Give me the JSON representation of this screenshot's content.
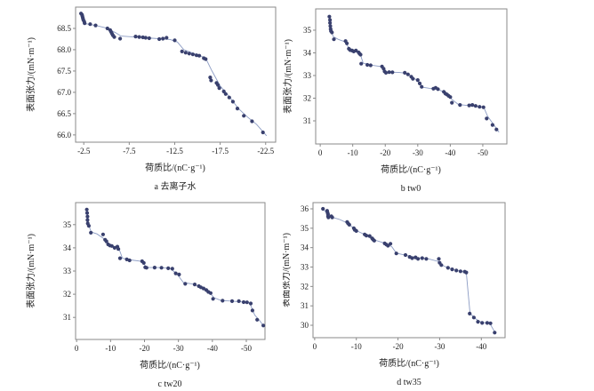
{
  "figure": {
    "point_color": "#39406e",
    "line_color": "#8c9cc4",
    "axis_color": "#8a8a8a",
    "text_color": "#1c1c1c",
    "background": "#ffffff"
  },
  "chart_data": [
    {
      "type": "scatter",
      "caption": "a 去离子水",
      "xlabel": "荷质比/(nC·g⁻¹)",
      "ylabel": "表面张力/(mN·m⁻¹)",
      "x_ticks": {
        "values": [
          -2.5,
          -7.5,
          -12.5,
          -17.5,
          -22.5
        ],
        "labels": [
          "-2.5",
          "-7.5",
          "-12.5",
          "-17.5",
          "-22.5"
        ]
      },
      "y_ticks": {
        "values": [
          66.0,
          66.5,
          67.0,
          67.5,
          68.0,
          68.5
        ],
        "labels": [
          "66.0",
          "66.5",
          "67.0",
          "67.5",
          "68.0",
          "68.5"
        ]
      },
      "x_range": [
        -1.6,
        -23.6
      ],
      "y_range": [
        65.83,
        69.0
      ],
      "scatter": [
        [
          -2.2,
          68.85
        ],
        [
          -2.3,
          68.82
        ],
        [
          -2.35,
          68.78
        ],
        [
          -2.4,
          68.74
        ],
        [
          -2.45,
          68.7
        ],
        [
          -2.55,
          68.66
        ],
        [
          -2.6,
          68.62
        ],
        [
          -3.2,
          68.6
        ],
        [
          -3.8,
          68.57
        ],
        [
          -5.1,
          68.5
        ],
        [
          -5.4,
          68.46
        ],
        [
          -5.5,
          68.42
        ],
        [
          -5.6,
          68.38
        ],
        [
          -5.7,
          68.34
        ],
        [
          -5.85,
          68.3
        ],
        [
          -6.5,
          68.26
        ],
        [
          -8.2,
          68.31
        ],
        [
          -8.6,
          68.3
        ],
        [
          -9.0,
          68.29
        ],
        [
          -9.3,
          68.28
        ],
        [
          -9.7,
          68.27
        ],
        [
          -10.8,
          68.25
        ],
        [
          -11.2,
          68.26
        ],
        [
          -11.6,
          68.28
        ],
        [
          -12.5,
          68.22
        ],
        [
          -13.3,
          67.96
        ],
        [
          -13.7,
          67.93
        ],
        [
          -14.1,
          67.91
        ],
        [
          -14.5,
          67.89
        ],
        [
          -14.9,
          67.87
        ],
        [
          -15.2,
          67.86
        ],
        [
          -15.7,
          67.8
        ],
        [
          -15.9,
          67.78
        ],
        [
          -16.4,
          67.35
        ],
        [
          -16.5,
          67.28
        ],
        [
          -17.1,
          67.22
        ],
        [
          -17.25,
          67.17
        ],
        [
          -17.4,
          67.1
        ],
        [
          -17.9,
          67.02
        ],
        [
          -18.1,
          66.96
        ],
        [
          -18.5,
          66.88
        ],
        [
          -18.9,
          66.78
        ],
        [
          -19.4,
          66.62
        ],
        [
          -20.1,
          66.45
        ],
        [
          -21.0,
          66.32
        ],
        [
          -22.2,
          66.06
        ]
      ],
      "trend_line": [
        [
          -2.4,
          68.62
        ],
        [
          -3.0,
          68.6
        ],
        [
          -4.0,
          68.56
        ],
        [
          -5.0,
          68.51
        ],
        [
          -6.0,
          68.4
        ],
        [
          -6.6,
          68.32
        ],
        [
          -8.0,
          68.3
        ],
        [
          -10.0,
          68.27
        ],
        [
          -12.0,
          68.24
        ],
        [
          -12.8,
          68.18
        ],
        [
          -13.5,
          68.0
        ],
        [
          -14.5,
          67.92
        ],
        [
          -15.5,
          67.84
        ],
        [
          -16.0,
          67.76
        ],
        [
          -16.6,
          67.5
        ],
        [
          -17.5,
          67.15
        ],
        [
          -18.5,
          66.9
        ],
        [
          -19.5,
          66.62
        ],
        [
          -20.5,
          66.42
        ],
        [
          -21.5,
          66.25
        ],
        [
          -22.6,
          65.98
        ]
      ]
    },
    {
      "type": "scatter",
      "caption": "b tw0",
      "xlabel": "荷质比/(nC·g⁻¹)",
      "ylabel": "表面张力/(mN·m⁻¹)",
      "x_ticks": {
        "values": [
          0,
          -10,
          -20,
          -30,
          -40,
          -50
        ],
        "labels": [
          "0",
          "-10",
          "-20",
          "-30",
          "-40",
          "-50"
        ]
      },
      "y_ticks": {
        "values": [
          31,
          32,
          33,
          34,
          35
        ],
        "labels": [
          "31",
          "32",
          "33",
          "34",
          "35"
        ]
      },
      "x_range": [
        1.4,
        -57.4
      ],
      "y_range": [
        29.98,
        35.94
      ],
      "scatter": [
        [
          -2.8,
          35.6
        ],
        [
          -3.0,
          35.45
        ],
        [
          -3.0,
          35.32
        ],
        [
          -3.1,
          35.18
        ],
        [
          -3.2,
          35.05
        ],
        [
          -3.3,
          34.96
        ],
        [
          -3.6,
          34.9
        ],
        [
          -4.2,
          34.6
        ],
        [
          -7.8,
          34.52
        ],
        [
          -8.2,
          34.42
        ],
        [
          -8.8,
          34.18
        ],
        [
          -9.2,
          34.12
        ],
        [
          -9.8,
          34.1
        ],
        [
          -10.3,
          34.06
        ],
        [
          -11.0,
          34.1
        ],
        [
          -11.8,
          34.02
        ],
        [
          -12.1,
          33.96
        ],
        [
          -12.4,
          33.92
        ],
        [
          -12.6,
          33.52
        ],
        [
          -14.5,
          33.47
        ],
        [
          -15.5,
          33.45
        ],
        [
          -19.0,
          33.4
        ],
        [
          -19.5,
          33.3
        ],
        [
          -19.8,
          33.18
        ],
        [
          -20.2,
          33.12
        ],
        [
          -21.2,
          33.15
        ],
        [
          -22.2,
          33.14
        ],
        [
          -26.0,
          33.12
        ],
        [
          -27.0,
          33.05
        ],
        [
          -28.0,
          32.95
        ],
        [
          -28.5,
          32.86
        ],
        [
          -30.0,
          32.8
        ],
        [
          -30.6,
          32.65
        ],
        [
          -31.2,
          32.5
        ],
        [
          -34.8,
          32.42
        ],
        [
          -35.5,
          32.46
        ],
        [
          -36.2,
          32.4
        ],
        [
          -38.0,
          32.28
        ],
        [
          -38.5,
          32.2
        ],
        [
          -39.0,
          32.16
        ],
        [
          -39.5,
          32.1
        ],
        [
          -40.0,
          32.05
        ],
        [
          -40.5,
          31.8
        ],
        [
          -43.0,
          31.7
        ],
        [
          -45.8,
          31.68
        ],
        [
          -46.8,
          31.7
        ],
        [
          -47.8,
          31.66
        ],
        [
          -49.0,
          31.62
        ],
        [
          -50.2,
          31.6
        ],
        [
          -51.2,
          31.1
        ],
        [
          -53.0,
          30.82
        ],
        [
          -54.2,
          30.62
        ]
      ],
      "trend_line": [
        [
          -2.8,
          35.5
        ],
        [
          -3.3,
          35.0
        ],
        [
          -4.0,
          34.72
        ],
        [
          -5.5,
          34.6
        ],
        [
          -7.8,
          34.48
        ],
        [
          -9.0,
          34.15
        ],
        [
          -11.0,
          34.06
        ],
        [
          -12.3,
          33.95
        ],
        [
          -13.2,
          33.55
        ],
        [
          -15.5,
          33.46
        ],
        [
          -18.5,
          33.4
        ],
        [
          -20.5,
          33.15
        ],
        [
          -24.0,
          33.14
        ],
        [
          -26.5,
          33.1
        ],
        [
          -28.5,
          32.92
        ],
        [
          -30.5,
          32.7
        ],
        [
          -31.5,
          32.48
        ],
        [
          -33.5,
          32.44
        ],
        [
          -36.0,
          32.42
        ],
        [
          -38.5,
          32.22
        ],
        [
          -40.5,
          31.95
        ],
        [
          -42.5,
          31.72
        ],
        [
          -45.0,
          31.68
        ],
        [
          -48.0,
          31.65
        ],
        [
          -50.3,
          31.6
        ],
        [
          -51.5,
          31.2
        ],
        [
          -53.0,
          30.9
        ],
        [
          -55.0,
          30.5
        ]
      ]
    },
    {
      "type": "scatter",
      "caption": "c tw20",
      "xlabel": "荷质比/(nC·g⁻¹)",
      "ylabel": "表面张力/(mN·m⁻¹)",
      "x_ticks": {
        "values": [
          0,
          -10,
          -20,
          -30,
          -40,
          -50
        ],
        "labels": [
          "0",
          "-10",
          "-20",
          "-30",
          "-40",
          "-50"
        ]
      },
      "y_ticks": {
        "values": [
          31,
          32,
          33,
          34,
          35
        ],
        "labels": [
          "31",
          "32",
          "33",
          "34",
          "35"
        ]
      },
      "x_range": [
        0.3,
        -55.5
      ],
      "y_range": [
        30.05,
        35.95
      ],
      "scatter": [
        [
          -3.0,
          35.65
        ],
        [
          -3.1,
          35.5
        ],
        [
          -3.2,
          35.35
        ],
        [
          -3.2,
          35.2
        ],
        [
          -3.3,
          35.05
        ],
        [
          -3.6,
          34.95
        ],
        [
          -4.2,
          34.65
        ],
        [
          -7.8,
          34.58
        ],
        [
          -8.4,
          34.35
        ],
        [
          -8.8,
          34.28
        ],
        [
          -9.3,
          34.15
        ],
        [
          -9.8,
          34.1
        ],
        [
          -10.4,
          34.08
        ],
        [
          -11.2,
          34.0
        ],
        [
          -12.0,
          34.05
        ],
        [
          -12.3,
          33.95
        ],
        [
          -12.8,
          33.55
        ],
        [
          -14.8,
          33.5
        ],
        [
          -15.6,
          33.46
        ],
        [
          -19.3,
          33.42
        ],
        [
          -19.8,
          33.35
        ],
        [
          -20.2,
          33.16
        ],
        [
          -20.6,
          33.14
        ],
        [
          -23.0,
          33.15
        ],
        [
          -25.0,
          33.14
        ],
        [
          -27.0,
          33.12
        ],
        [
          -28.2,
          33.1
        ],
        [
          -29.2,
          32.9
        ],
        [
          -30.2,
          32.85
        ],
        [
          -32.0,
          32.45
        ],
        [
          -34.8,
          32.42
        ],
        [
          -36.0,
          32.35
        ],
        [
          -36.6,
          32.3
        ],
        [
          -37.4,
          32.25
        ],
        [
          -38.2,
          32.18
        ],
        [
          -38.8,
          32.1
        ],
        [
          -39.5,
          32.05
        ],
        [
          -40.2,
          31.8
        ],
        [
          -43.0,
          31.72
        ],
        [
          -45.8,
          31.7
        ],
        [
          -47.8,
          31.7
        ],
        [
          -49.2,
          31.66
        ],
        [
          -50.2,
          31.65
        ],
        [
          -51.3,
          31.6
        ],
        [
          -51.8,
          31.3
        ],
        [
          -53.2,
          30.9
        ],
        [
          -55.0,
          30.65
        ]
      ],
      "trend_line": [
        [
          -3.0,
          35.55
        ],
        [
          -3.5,
          35.0
        ],
        [
          -4.3,
          34.68
        ],
        [
          -6.0,
          34.6
        ],
        [
          -8.0,
          34.4
        ],
        [
          -9.5,
          34.12
        ],
        [
          -11.5,
          34.02
        ],
        [
          -12.5,
          33.95
        ],
        [
          -13.5,
          33.55
        ],
        [
          -16.0,
          33.48
        ],
        [
          -19.0,
          33.42
        ],
        [
          -20.8,
          33.15
        ],
        [
          -24.0,
          33.15
        ],
        [
          -27.5,
          33.12
        ],
        [
          -29.5,
          32.88
        ],
        [
          -31.5,
          32.5
        ],
        [
          -34.0,
          32.45
        ],
        [
          -36.5,
          32.32
        ],
        [
          -39.0,
          32.1
        ],
        [
          -40.5,
          31.85
        ],
        [
          -42.5,
          31.73
        ],
        [
          -46.0,
          31.7
        ],
        [
          -49.5,
          31.66
        ],
        [
          -51.0,
          31.62
        ],
        [
          -52.5,
          31.1
        ],
        [
          -54.0,
          30.85
        ],
        [
          -55.2,
          30.6
        ]
      ]
    },
    {
      "type": "scatter",
      "caption": "d tw35",
      "xlabel": "荷质比/(nC·g⁻¹)",
      "ylabel": "表面张力/(mN·m⁻¹)",
      "x_ticks": {
        "values": [
          0,
          -10,
          -20,
          -30,
          -40
        ],
        "labels": [
          "0",
          "-10",
          "-20",
          "-30",
          "-40"
        ]
      },
      "y_ticks": {
        "values": [
          30,
          31,
          32,
          33,
          34,
          35,
          36
        ],
        "labels": [
          "30",
          "31",
          "32",
          "33",
          "34",
          "35",
          "36"
        ]
      },
      "x_range": [
        0.4,
        -45.7
      ],
      "y_range": [
        29.36,
        36.32
      ],
      "scatter": [
        [
          -2.0,
          36.0
        ],
        [
          -3.0,
          35.9
        ],
        [
          -3.1,
          35.8
        ],
        [
          -3.2,
          35.72
        ],
        [
          -3.2,
          35.62
        ],
        [
          -3.3,
          35.56
        ],
        [
          -4.0,
          35.62
        ],
        [
          -4.2,
          35.56
        ],
        [
          -7.8,
          35.32
        ],
        [
          -8.0,
          35.25
        ],
        [
          -8.3,
          35.18
        ],
        [
          -9.4,
          35.0
        ],
        [
          -9.6,
          34.92
        ],
        [
          -10.0,
          34.86
        ],
        [
          -12.0,
          34.68
        ],
        [
          -12.4,
          34.62
        ],
        [
          -13.2,
          34.6
        ],
        [
          -13.8,
          34.48
        ],
        [
          -14.0,
          34.42
        ],
        [
          -14.3,
          34.36
        ],
        [
          -16.8,
          34.22
        ],
        [
          -17.2,
          34.16
        ],
        [
          -17.6,
          34.1
        ],
        [
          -18.2,
          34.2
        ],
        [
          -19.6,
          33.7
        ],
        [
          -21.8,
          33.62
        ],
        [
          -22.8,
          33.52
        ],
        [
          -23.4,
          33.46
        ],
        [
          -24.2,
          33.5
        ],
        [
          -24.8,
          33.42
        ],
        [
          -25.8,
          33.46
        ],
        [
          -26.8,
          33.42
        ],
        [
          -29.8,
          33.42
        ],
        [
          -30.0,
          33.22
        ],
        [
          -30.4,
          33.1
        ],
        [
          -32.0,
          32.96
        ],
        [
          -33.0,
          32.88
        ],
        [
          -34.0,
          32.82
        ],
        [
          -35.0,
          32.78
        ],
        [
          -36.0,
          32.76
        ],
        [
          -36.4,
          32.72
        ],
        [
          -37.2,
          30.6
        ],
        [
          -38.2,
          30.4
        ],
        [
          -39.2,
          30.18
        ],
        [
          -40.2,
          30.12
        ],
        [
          -41.4,
          30.12
        ],
        [
          -42.2,
          30.1
        ],
        [
          -43.2,
          29.62
        ]
      ],
      "trend_line": [
        [
          -2.0,
          36.0
        ],
        [
          -3.6,
          35.6
        ],
        [
          -6.0,
          35.45
        ],
        [
          -8.0,
          35.25
        ],
        [
          -10.0,
          34.88
        ],
        [
          -12.5,
          34.62
        ],
        [
          -14.0,
          34.42
        ],
        [
          -16.5,
          34.25
        ],
        [
          -18.5,
          34.05
        ],
        [
          -19.6,
          33.72
        ],
        [
          -22.0,
          33.6
        ],
        [
          -24.5,
          33.48
        ],
        [
          -27.0,
          33.44
        ],
        [
          -29.5,
          33.3
        ],
        [
          -31.0,
          33.05
        ],
        [
          -33.5,
          32.85
        ],
        [
          -36.4,
          32.72
        ],
        [
          -36.9,
          31.5
        ],
        [
          -37.3,
          30.62
        ],
        [
          -38.5,
          30.35
        ],
        [
          -40.0,
          30.15
        ],
        [
          -42.0,
          30.1
        ],
        [
          -43.3,
          29.62
        ]
      ]
    }
  ]
}
